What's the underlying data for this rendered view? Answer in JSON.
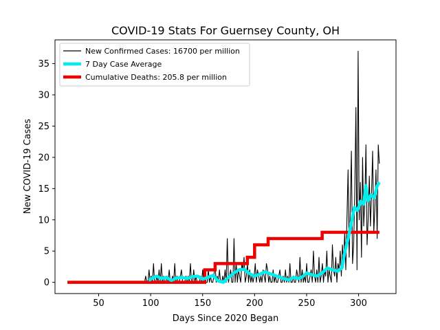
{
  "chart_data": {
    "type": "line",
    "title": "COVID-19 Stats For Guernsey County, OH",
    "xlabel": "Days Since 2020 Began",
    "ylabel": "New COVID-19 Cases",
    "xlim": [
      8,
      336
    ],
    "ylim": [
      -1.8,
      38.8
    ],
    "xticks": [
      50,
      100,
      150,
      200,
      250,
      300
    ],
    "yticks": [
      0,
      5,
      10,
      15,
      20,
      25,
      30,
      35
    ],
    "legend_position": "upper-left",
    "grid": false,
    "series": [
      {
        "name": "New Confirmed Cases: 16700 per million",
        "color": "#000000",
        "style": "thin",
        "x_start": 92,
        "x_end": 320,
        "values": [
          0,
          0,
          0,
          1,
          0,
          0,
          2,
          0,
          1,
          0,
          3,
          0,
          0,
          1,
          0,
          2,
          0,
          3,
          0,
          1,
          0,
          0,
          1,
          0,
          2,
          0,
          0,
          1,
          0,
          3,
          0,
          1,
          0,
          0,
          1,
          2,
          0,
          0,
          0,
          1,
          0,
          1,
          0,
          3,
          0,
          0,
          2,
          0,
          1,
          0,
          0,
          0,
          1,
          0,
          2,
          0,
          1,
          0,
          0,
          2,
          0,
          1,
          0,
          0,
          1,
          3,
          0,
          1,
          0,
          2,
          0,
          0,
          1,
          0,
          2,
          0,
          7,
          0,
          1,
          2,
          0,
          0,
          7,
          0,
          3,
          0,
          2,
          1,
          0,
          3,
          2,
          4,
          0,
          1,
          3,
          0,
          2,
          0,
          1,
          0,
          1,
          3,
          0,
          2,
          1,
          0,
          1,
          0,
          2,
          1,
          0,
          3,
          2,
          0,
          1,
          0,
          0,
          2,
          0,
          1,
          0,
          0,
          1,
          2,
          0,
          0,
          1,
          0,
          2,
          0,
          1,
          0,
          3,
          0,
          0,
          1,
          0,
          0,
          2,
          1,
          0,
          4,
          0,
          2,
          0,
          1,
          0,
          3,
          0,
          0,
          1,
          2,
          0,
          5,
          1,
          0,
          2,
          0,
          4,
          0,
          1,
          3,
          0,
          2,
          1,
          5,
          0,
          2,
          1,
          0,
          6,
          2,
          1,
          4,
          0,
          3,
          2,
          5,
          1,
          6,
          3,
          8,
          2,
          10,
          18,
          4,
          12,
          21,
          3,
          6,
          14,
          28,
          2,
          37,
          10,
          16,
          4,
          20,
          9,
          13,
          22,
          6,
          10,
          17,
          9,
          14,
          21,
          8,
          12,
          18,
          7,
          22,
          19
        ]
      },
      {
        "name": "7 Day Case Average",
        "color": "#00eeee",
        "style": "thick",
        "points": [
          [
            98,
            0.3
          ],
          [
            103,
            0.8
          ],
          [
            106,
            1.0
          ],
          [
            110,
            0.6
          ],
          [
            115,
            0.8
          ],
          [
            120,
            0.3
          ],
          [
            125,
            0.7
          ],
          [
            130,
            0.8
          ],
          [
            135,
            0.6
          ],
          [
            140,
            0.9
          ],
          [
            145,
            1.0
          ],
          [
            150,
            0.5
          ],
          [
            155,
            0.8
          ],
          [
            160,
            1.1
          ],
          [
            165,
            0.2
          ],
          [
            170,
            0.0
          ],
          [
            175,
            0.8
          ],
          [
            180,
            1.5
          ],
          [
            185,
            2.0
          ],
          [
            190,
            2.1
          ],
          [
            195,
            1.4
          ],
          [
            200,
            1.0
          ],
          [
            205,
            1.3
          ],
          [
            210,
            1.7
          ],
          [
            213,
            1.5
          ],
          [
            218,
            1.2
          ],
          [
            223,
            0.9
          ],
          [
            228,
            0.6
          ],
          [
            233,
            0.4
          ],
          [
            238,
            0.8
          ],
          [
            242,
            0.6
          ],
          [
            246,
            0.9
          ],
          [
            250,
            1.5
          ],
          [
            255,
            1.2
          ],
          [
            260,
            1.0
          ],
          [
            265,
            1.5
          ],
          [
            270,
            2.3
          ],
          [
            275,
            2.0
          ],
          [
            280,
            1.8
          ],
          [
            284,
            2.3
          ],
          [
            287,
            5.0
          ],
          [
            290,
            7.0
          ],
          [
            293,
            9.5
          ],
          [
            296,
            12.0
          ],
          [
            299,
            11.5
          ],
          [
            302,
            13.0
          ],
          [
            305,
            12.5
          ],
          [
            307,
            15.5
          ],
          [
            309,
            13.0
          ],
          [
            312,
            14.0
          ],
          [
            315,
            13.5
          ],
          [
            318,
            15.5
          ],
          [
            320,
            16.0
          ]
        ]
      },
      {
        "name": "Cumulative Deaths: 205.8 per million",
        "color": "#ee0000",
        "style": "thick",
        "steps": [
          [
            20,
            0
          ],
          [
            150,
            0
          ],
          [
            152,
            2
          ],
          [
            162,
            3
          ],
          [
            193,
            4
          ],
          [
            200,
            6
          ],
          [
            213,
            7
          ],
          [
            265,
            8
          ],
          [
            320,
            8
          ]
        ]
      }
    ]
  }
}
